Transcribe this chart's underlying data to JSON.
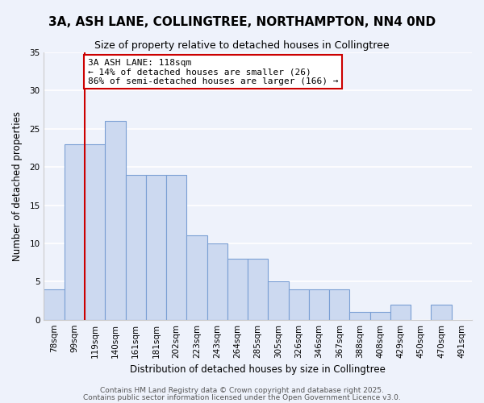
{
  "title": "3A, ASH LANE, COLLINGTREE, NORTHAMPTON, NN4 0ND",
  "subtitle": "Size of property relative to detached houses in Collingtree",
  "xlabel": "Distribution of detached houses by size in Collingtree",
  "ylabel": "Number of detached properties",
  "bar_color": "#ccd9f0",
  "bar_edge_color": "#7a9fd4",
  "categories": [
    "78sqm",
    "99sqm",
    "119sqm",
    "140sqm",
    "161sqm",
    "181sqm",
    "202sqm",
    "223sqm",
    "243sqm",
    "264sqm",
    "285sqm",
    "305sqm",
    "326sqm",
    "346sqm",
    "367sqm",
    "388sqm",
    "408sqm",
    "429sqm",
    "450sqm",
    "470sqm",
    "491sqm"
  ],
  "values": [
    4,
    23,
    23,
    26,
    19,
    19,
    19,
    11,
    10,
    8,
    8,
    5,
    4,
    4,
    4,
    1,
    1,
    2,
    0,
    2,
    0
  ],
  "vline_index": 2,
  "vline_color": "#cc0000",
  "annotation_line1": "3A ASH LANE: 118sqm",
  "annotation_line2": "← 14% of detached houses are smaller (26)",
  "annotation_line3": "86% of semi-detached houses are larger (166) →",
  "annotation_box_color": "#ffffff",
  "annotation_box_edge_color": "#cc0000",
  "ylim": [
    0,
    35
  ],
  "yticks": [
    0,
    5,
    10,
    15,
    20,
    25,
    30,
    35
  ],
  "footer_line1": "Contains HM Land Registry data © Crown copyright and database right 2025.",
  "footer_line2": "Contains public sector information licensed under the Open Government Licence v3.0.",
  "background_color": "#eef2fb",
  "grid_color": "#ffffff",
  "title_fontsize": 11,
  "subtitle_fontsize": 9,
  "axis_label_fontsize": 8.5,
  "tick_fontsize": 7.5,
  "annotation_fontsize": 8,
  "footer_fontsize": 6.5
}
